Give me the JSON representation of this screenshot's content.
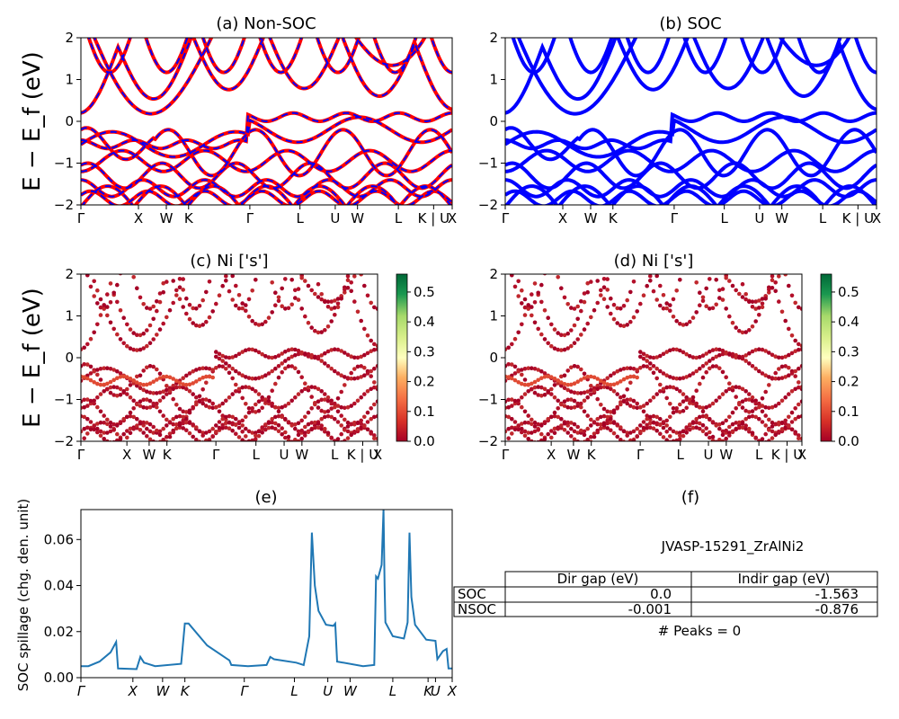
{
  "chart_data": [
    {
      "id": "a",
      "type": "line",
      "title": "(a) Non-SOC",
      "ylabel": "E − E_f (eV)",
      "ylim": [
        -2,
        2
      ],
      "yticks": [
        "2",
        "1",
        "0",
        "−1",
        "−2"
      ],
      "xticks": [
        "Γ",
        "X",
        "W",
        "K",
        "Γ",
        "L",
        "U",
        "W",
        "L",
        "K | U",
        "X"
      ],
      "series": [
        {
          "color": "#ff0000",
          "style": "solid"
        },
        {
          "color": "#0000ff",
          "style": "dashed"
        }
      ]
    },
    {
      "id": "b",
      "type": "line",
      "title": "(b) SOC",
      "ylim": [
        -2,
        2
      ],
      "yticks": [
        "2",
        "1",
        "0",
        "−1",
        "−2"
      ],
      "xticks": [
        "Γ",
        "X",
        "W",
        "K",
        "Γ",
        "L",
        "U",
        "W",
        "L",
        "K | U",
        "X"
      ],
      "series": [
        {
          "color": "#0000ff",
          "style": "solid"
        }
      ]
    },
    {
      "id": "c",
      "type": "scatter",
      "title": "(c)  Ni ['s']",
      "ylabel": "E − E_f (eV)",
      "ylim": [
        -2,
        2
      ],
      "yticks": [
        "2",
        "1",
        "0",
        "−1",
        "−2"
      ],
      "xticks": [
        "Γ",
        "X",
        "W",
        "K",
        "Γ",
        "L",
        "U",
        "W",
        "L",
        "K | U",
        "X"
      ],
      "colorbar": {
        "ticks": [
          "0.5",
          "0.4",
          "0.3",
          "0.2",
          "0.1",
          "0.0"
        ],
        "range": [
          0,
          0.56
        ],
        "colormap": "RdYlGn"
      }
    },
    {
      "id": "d",
      "type": "scatter",
      "title": "(d) Ni ['s']",
      "ylim": [
        -2,
        2
      ],
      "yticks": [
        "2",
        "1",
        "0",
        "−1",
        "−2"
      ],
      "xticks": [
        "Γ",
        "X",
        "W",
        "K",
        "Γ",
        "L",
        "U",
        "W",
        "L",
        "K | U",
        "X"
      ],
      "colorbar": {
        "ticks": [
          "0.5",
          "0.4",
          "0.3",
          "0.2",
          "0.1",
          "0.0"
        ],
        "range": [
          0,
          0.56
        ],
        "colormap": "RdYlGn"
      }
    },
    {
      "id": "e",
      "type": "line",
      "title": "(e)",
      "ylabel": "SOC spillage (chg. den. unit)",
      "ylim": [
        0,
        0.073
      ],
      "yticks": [
        "0.06",
        "0.04",
        "0.02",
        "0.00"
      ],
      "xticks": [
        "Γ",
        "X",
        "W",
        "K",
        "Γ",
        "L",
        "U",
        "W",
        "L",
        "K",
        "U",
        "X"
      ],
      "color": "#1f77b4",
      "x": [
        0,
        0.02,
        0.05,
        0.08,
        0.095,
        0.1,
        0.15,
        0.16,
        0.17,
        0.2,
        0.27,
        0.28,
        0.29,
        0.34,
        0.4,
        0.405,
        0.45,
        0.5,
        0.51,
        0.52,
        0.58,
        0.6,
        0.615,
        0.622,
        0.63,
        0.64,
        0.66,
        0.68,
        0.685,
        0.69,
        0.76,
        0.79,
        0.795,
        0.8,
        0.81,
        0.815,
        0.818,
        0.82,
        0.84,
        0.87,
        0.88,
        0.885,
        0.89,
        0.9,
        0.93,
        0.955,
        0.96,
        0.975,
        0.985,
        0.99,
        1.0
      ],
      "y": [
        0.005,
        0.005,
        0.007,
        0.011,
        0.0155,
        0.004,
        0.0037,
        0.009,
        0.0065,
        0.005,
        0.006,
        0.0235,
        0.0235,
        0.014,
        0.0075,
        0.0055,
        0.005,
        0.0055,
        0.009,
        0.008,
        0.0065,
        0.0055,
        0.018,
        0.063,
        0.04,
        0.029,
        0.023,
        0.0225,
        0.0235,
        0.007,
        0.005,
        0.0055,
        0.044,
        0.043,
        0.049,
        0.073,
        0.04,
        0.024,
        0.018,
        0.017,
        0.024,
        0.063,
        0.035,
        0.023,
        0.0165,
        0.016,
        0.008,
        0.0115,
        0.0125,
        0.004,
        0.004
      ]
    },
    {
      "id": "f",
      "type": "table",
      "title": "(f)",
      "caption": "JVASP-15291_ZrAlNi2",
      "columns": [
        "Dir gap (eV)",
        "Indir gap (eV)"
      ],
      "rows": [
        {
          "label": "SOC",
          "values": [
            "0.0",
            "-1.563"
          ]
        },
        {
          "label": "NSOC",
          "values": [
            "-0.001",
            "-0.876"
          ]
        }
      ],
      "footer": "# Peaks = 0"
    }
  ]
}
